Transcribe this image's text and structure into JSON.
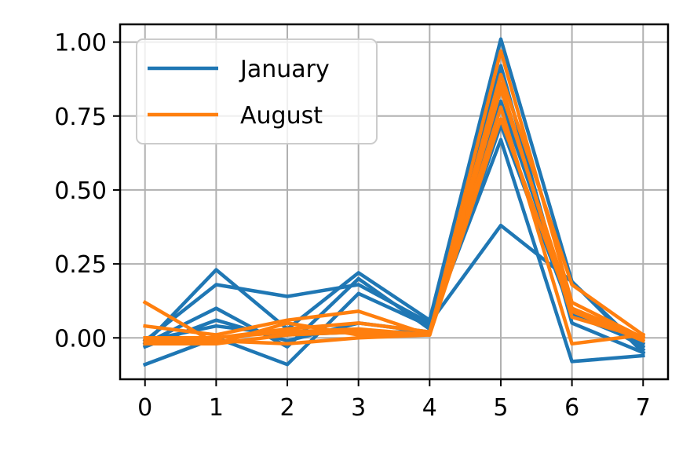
{
  "chart_data": {
    "type": "line",
    "title": "",
    "xlabel": "",
    "ylabel": "",
    "x": [
      0,
      1,
      2,
      3,
      4,
      5,
      6,
      7
    ],
    "xlim": [
      -0.35,
      7.35
    ],
    "ylim": [
      -0.14,
      1.06
    ],
    "xticks": [
      "0",
      "1",
      "2",
      "3",
      "4",
      "5",
      "6",
      "7"
    ],
    "yticks": [
      {
        "value": 0.0,
        "label": "0.00"
      },
      {
        "value": 0.25,
        "label": "0.25"
      },
      {
        "value": 0.5,
        "label": "0.50"
      },
      {
        "value": 0.75,
        "label": "0.75"
      },
      {
        "value": 1.0,
        "label": "1.00"
      }
    ],
    "grid": true,
    "legend_position": "top-left",
    "colors": {
      "January": "#1f77b4",
      "August": "#ff7f0e"
    },
    "legend": [
      {
        "label": "January",
        "color": "#1f77b4"
      },
      {
        "label": "August",
        "color": "#ff7f0e"
      }
    ],
    "groups": [
      {
        "name": "January",
        "color": "#1f77b4",
        "lines": [
          [
            -0.02,
            0.23,
            0.03,
            0.22,
            0.06,
            1.01,
            0.19,
            -0.05
          ],
          [
            -0.01,
            0.18,
            0.14,
            0.18,
            0.05,
            0.38,
            0.19,
            -0.04
          ],
          [
            -0.09,
            0.0,
            -0.09,
            0.15,
            0.04,
            0.67,
            -0.08,
            -0.06
          ],
          [
            -0.02,
            0.1,
            -0.03,
            0.2,
            0.03,
            0.92,
            0.05,
            -0.05
          ],
          [
            -0.03,
            0.06,
            -0.01,
            0.05,
            0.02,
            0.72,
            0.08,
            -0.02
          ],
          [
            -0.01,
            0.04,
            0.01,
            0.02,
            0.02,
            0.8,
            0.1,
            -0.03
          ]
        ]
      },
      {
        "name": "August",
        "color": "#ff7f0e",
        "lines": [
          [
            0.12,
            -0.02,
            0.05,
            0.01,
            0.01,
            0.97,
            0.12,
            0.0
          ],
          [
            0.04,
            0.01,
            0.06,
            0.09,
            0.01,
            0.89,
            0.18,
            0.01
          ],
          [
            -0.02,
            0.0,
            0.02,
            0.03,
            0.01,
            0.84,
            0.1,
            0.0
          ],
          [
            -0.01,
            -0.01,
            -0.02,
            0.0,
            0.01,
            0.78,
            -0.02,
            0.01
          ],
          [
            -0.02,
            -0.02,
            0.01,
            0.02,
            0.01,
            0.74,
            0.09,
            -0.01
          ],
          [
            0.0,
            0.0,
            0.03,
            0.05,
            0.02,
            0.86,
            0.07,
            0.0
          ]
        ]
      }
    ]
  }
}
